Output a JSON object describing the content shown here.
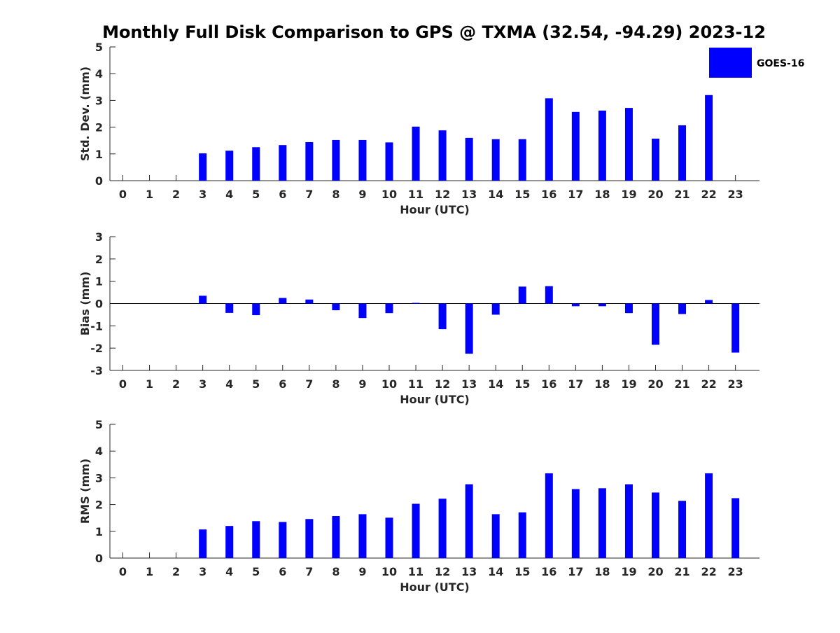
{
  "title": "Monthly Full Disk Comparison to GPS @ TXMA (32.54, -94.29) 2023-12",
  "legend": {
    "label": "GOES-16",
    "color": "#0000ff",
    "placement": "top-right"
  },
  "chart_data": [
    {
      "type": "bar",
      "ylabel": "Std. Dev. (mm)",
      "xlabel": "Hour (UTC)",
      "ylim": [
        0,
        5
      ],
      "yticks": [
        "0",
        "1",
        "2",
        "3",
        "4",
        "5"
      ],
      "categories": [
        "0",
        "1",
        "2",
        "3",
        "4",
        "5",
        "6",
        "7",
        "8",
        "9",
        "10",
        "11",
        "12",
        "13",
        "14",
        "15",
        "16",
        "17",
        "18",
        "19",
        "20",
        "21",
        "22",
        "23"
      ],
      "series": [
        {
          "name": "GOES-16",
          "values": [
            null,
            null,
            null,
            1.02,
            1.12,
            1.25,
            1.33,
            1.44,
            1.52,
            1.52,
            1.43,
            2.02,
            1.88,
            1.6,
            1.55,
            1.55,
            3.08,
            2.57,
            2.62,
            2.72,
            1.57,
            2.07,
            3.2,
            null
          ]
        }
      ]
    },
    {
      "type": "bar",
      "ylabel": "Bias (mm)",
      "xlabel": "Hour (UTC)",
      "ylim": [
        -3,
        3
      ],
      "yticks": [
        "-3",
        "-2",
        "-1",
        "0",
        "1",
        "2",
        "3"
      ],
      "categories": [
        "0",
        "1",
        "2",
        "3",
        "4",
        "5",
        "6",
        "7",
        "8",
        "9",
        "10",
        "11",
        "12",
        "13",
        "14",
        "15",
        "16",
        "17",
        "18",
        "19",
        "20",
        "21",
        "22",
        "23"
      ],
      "series": [
        {
          "name": "GOES-16",
          "values": [
            null,
            null,
            null,
            0.35,
            -0.42,
            -0.52,
            0.25,
            0.18,
            -0.3,
            -0.65,
            -0.43,
            0.03,
            -1.15,
            -2.25,
            -0.5,
            0.76,
            0.78,
            -0.12,
            -0.12,
            -0.43,
            -1.85,
            -0.47,
            0.16,
            -2.2
          ]
        }
      ]
    },
    {
      "type": "bar",
      "ylabel": "RMS (mm)",
      "xlabel": "Hour (UTC)",
      "ylim": [
        0,
        5
      ],
      "yticks": [
        "0",
        "1",
        "2",
        "3",
        "4",
        "5"
      ],
      "categories": [
        "0",
        "1",
        "2",
        "3",
        "4",
        "5",
        "6",
        "7",
        "8",
        "9",
        "10",
        "11",
        "12",
        "13",
        "14",
        "15",
        "16",
        "17",
        "18",
        "19",
        "20",
        "21",
        "22",
        "23"
      ],
      "series": [
        {
          "name": "GOES-16",
          "values": [
            null,
            null,
            null,
            1.07,
            1.2,
            1.38,
            1.35,
            1.46,
            1.57,
            1.64,
            1.51,
            2.03,
            2.22,
            2.76,
            1.64,
            1.71,
            3.17,
            2.58,
            2.61,
            2.76,
            2.45,
            2.14,
            3.17,
            2.24
          ]
        }
      ]
    }
  ]
}
